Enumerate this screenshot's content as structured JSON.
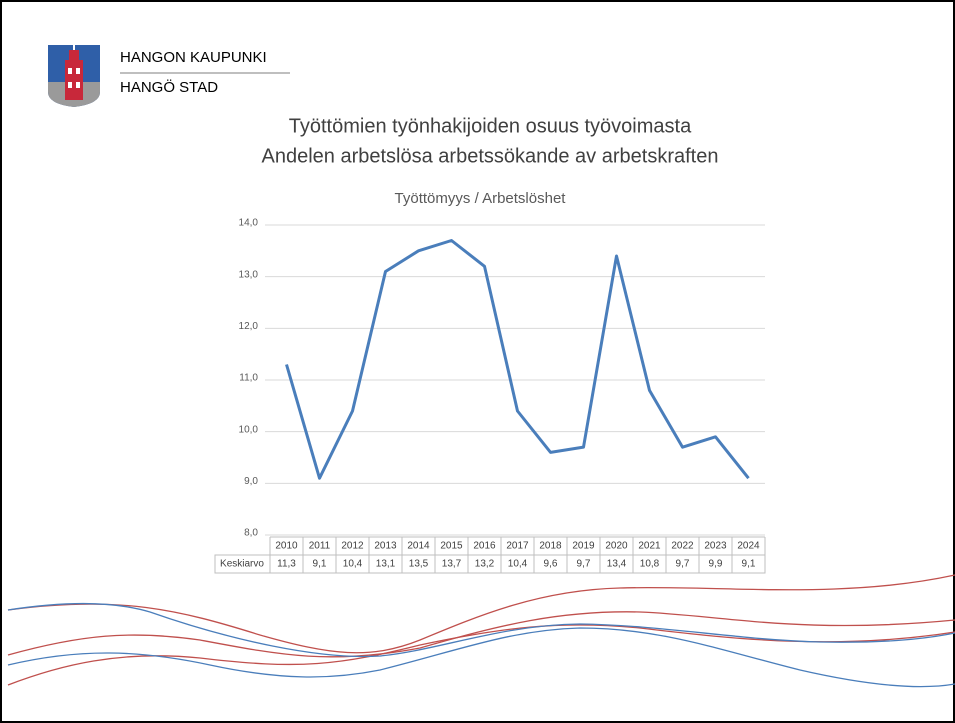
{
  "header": {
    "line1": "HANGON KAUPUNKI",
    "line2": "HANGÖ STAD"
  },
  "chart_data": {
    "type": "line",
    "title": "Työttömien työnhakijoiden osuus työvoimasta",
    "subtitle": "Andelen arbetslösa arbetssökande av arbetskraften",
    "chart_title": "Työttömyys / Arbetslöshet",
    "categories": [
      "2010",
      "2011",
      "2012",
      "2013",
      "2014",
      "2015",
      "2016",
      "2017",
      "2018",
      "2019",
      "2020",
      "2021",
      "2022",
      "2023",
      "2024"
    ],
    "series": [
      {
        "name": "Keskiarvo",
        "color": "#4a7ebb",
        "values": [
          11.3,
          9.1,
          10.4,
          13.1,
          13.5,
          13.7,
          13.2,
          10.4,
          9.6,
          9.7,
          13.4,
          10.8,
          9.7,
          9.9,
          9.1
        ],
        "value_labels": [
          "11,3",
          "9,1",
          "10,4",
          "13,1",
          "13,5",
          "13,7",
          "13,2",
          "10,4",
          "9,6",
          "9,7",
          "13,4",
          "10,8",
          "9,7",
          "9,9",
          "9,1"
        ]
      }
    ],
    "ylim": [
      8,
      14
    ],
    "yticks": [
      {
        "value": 8,
        "label": "8,0"
      },
      {
        "value": 9,
        "label": "9,0"
      },
      {
        "value": 10,
        "label": "10,0"
      },
      {
        "value": 11,
        "label": "11,0"
      },
      {
        "value": 12,
        "label": "12,0"
      },
      {
        "value": 13,
        "label": "13,0"
      },
      {
        "value": 14,
        "label": "14,0"
      }
    ],
    "grid": true
  }
}
